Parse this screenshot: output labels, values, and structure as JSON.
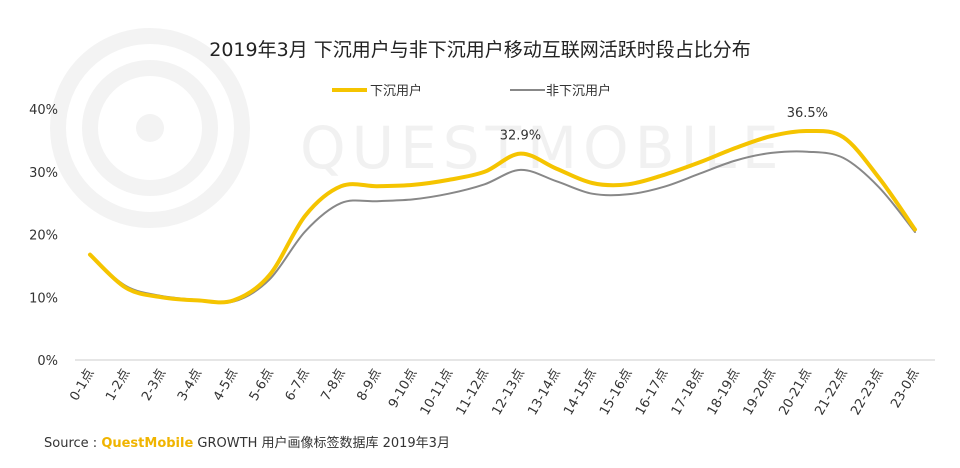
{
  "watermark": "QUESTMOBILE",
  "source": {
    "prefix": "Source :",
    "brand": "QuestMobile",
    "suffix": " GROWTH 用户画像标签数据库 2019年3月"
  },
  "colors": {
    "series1": "#f5c400",
    "series2": "#888888",
    "axis": "#cccccc",
    "watermark": "#f1f1f1"
  },
  "chart_data": {
    "type": "line",
    "title": "2019年3月 下沉用户与非下沉用户移动互联网活跃时段占比分布",
    "categories": [
      "0-1点",
      "1-2点",
      "2-3点",
      "3-4点",
      "4-5点",
      "5-6点",
      "6-7点",
      "7-8点",
      "8-9点",
      "9-10点",
      "10-11点",
      "11-12点",
      "12-13点",
      "13-14点",
      "14-15点",
      "15-16点",
      "16-17点",
      "17-18点",
      "18-19点",
      "19-20点",
      "20-21点",
      "21-22点",
      "22-23点",
      "23-0点"
    ],
    "yticks": [
      "0%",
      "10%",
      "20%",
      "30%",
      "40%"
    ],
    "ylim": [
      0,
      40
    ],
    "legend_position": "top-center",
    "series": [
      {
        "name": "下沉用户",
        "values": [
          16.8,
          11.5,
          10.0,
          9.5,
          9.5,
          13.5,
          23.0,
          27.7,
          27.7,
          27.9,
          28.7,
          30.0,
          32.9,
          30.5,
          28.2,
          28.0,
          29.5,
          31.5,
          33.8,
          35.7,
          36.5,
          35.5,
          29.0,
          20.8
        ]
      },
      {
        "name": "非下沉用户",
        "values": [
          16.6,
          11.8,
          10.2,
          9.6,
          9.3,
          12.8,
          20.5,
          25.0,
          25.3,
          25.6,
          26.5,
          28.0,
          30.3,
          28.5,
          26.5,
          26.4,
          27.6,
          29.7,
          31.8,
          33.0,
          33.2,
          32.2,
          27.5,
          20.4
        ]
      }
    ],
    "annotations": [
      {
        "text": "32.9%",
        "category": "12-13点",
        "value": 32.9
      },
      {
        "text": "36.5%",
        "category": "20-21点",
        "value": 36.5
      }
    ]
  }
}
